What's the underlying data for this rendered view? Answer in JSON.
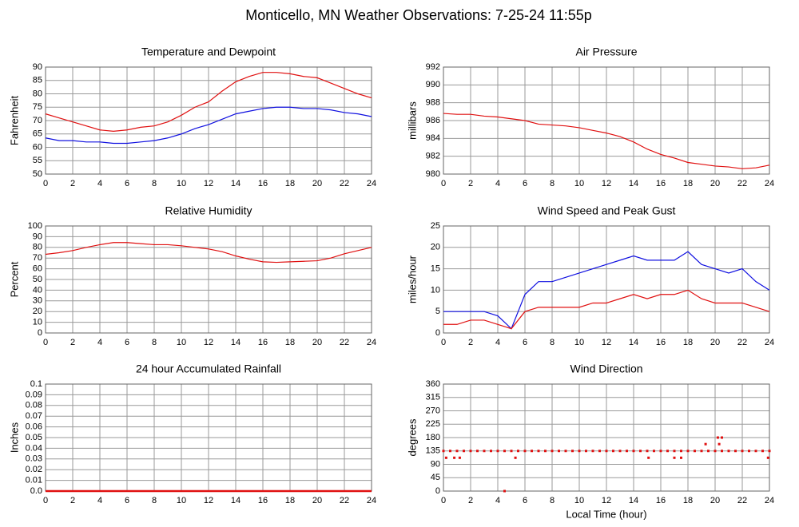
{
  "title": "Monticello, MN Weather Observations: 7-25-24 11:55p",
  "chart_data": [
    {
      "type": "line",
      "title": "Temperature and Dewpoint",
      "y_label": "Fahrenheit",
      "x": [
        0,
        1,
        2,
        3,
        4,
        5,
        6,
        7,
        8,
        9,
        10,
        11,
        12,
        13,
        14,
        15,
        16,
        17,
        18,
        19,
        20,
        21,
        22,
        23,
        24
      ],
      "series": [
        {
          "color": "#e01010",
          "values": [
            72.5,
            71,
            69.5,
            68,
            66.5,
            66,
            66.5,
            67.5,
            68,
            69.5,
            72,
            75,
            77,
            81,
            84.5,
            86.5,
            88,
            88,
            87.5,
            86.5,
            86,
            84,
            82,
            80,
            78.5
          ]
        },
        {
          "color": "#1010e0",
          "values": [
            63.5,
            62.5,
            62.5,
            62,
            62,
            61.5,
            61.5,
            62,
            62.5,
            63.5,
            65,
            67,
            68.5,
            70.5,
            72.5,
            73.5,
            74.5,
            75,
            75,
            74.5,
            74.5,
            74,
            73,
            72.5,
            71.5
          ]
        }
      ],
      "xlim": [
        0,
        24
      ],
      "xticks": [
        0,
        2,
        4,
        6,
        8,
        10,
        12,
        14,
        16,
        18,
        20,
        22,
        24
      ],
      "ylim": [
        50,
        90
      ],
      "yticks": [
        50,
        55,
        60,
        65,
        70,
        75,
        80,
        85,
        90
      ],
      "grid": true
    },
    {
      "type": "line",
      "title": "Air Pressure",
      "y_label": "millibars",
      "x": [
        0,
        1,
        2,
        3,
        4,
        5,
        6,
        7,
        8,
        9,
        10,
        11,
        12,
        13,
        14,
        15,
        16,
        17,
        18,
        19,
        20,
        21,
        22,
        23,
        24
      ],
      "series": [
        {
          "color": "#e01010",
          "values": [
            986.8,
            986.7,
            986.7,
            986.5,
            986.4,
            986.2,
            986,
            985.6,
            985.5,
            985.4,
            985.2,
            984.9,
            984.6,
            984.2,
            983.6,
            982.8,
            982.2,
            981.8,
            981.3,
            981.1,
            980.9,
            980.8,
            980.6,
            980.7,
            981.0
          ]
        }
      ],
      "xlim": [
        0,
        24
      ],
      "xticks": [
        0,
        2,
        4,
        6,
        8,
        10,
        12,
        14,
        16,
        18,
        20,
        22,
        24
      ],
      "ylim": [
        980,
        992
      ],
      "yticks": [
        980,
        982,
        984,
        986,
        988,
        990,
        992
      ],
      "grid": true
    },
    {
      "type": "line",
      "title": "Relative Humidity",
      "y_label": "Percent",
      "x": [
        0,
        1,
        2,
        3,
        4,
        5,
        6,
        7,
        8,
        9,
        10,
        11,
        12,
        13,
        14,
        15,
        16,
        17,
        18,
        19,
        20,
        21,
        22,
        23,
        24
      ],
      "series": [
        {
          "color": "#e01010",
          "values": [
            73.5,
            75,
            77,
            80,
            82.5,
            84.5,
            84.5,
            83.5,
            82.5,
            82.5,
            81.5,
            80,
            78.5,
            76,
            72,
            69,
            66.5,
            66,
            66.5,
            67,
            67.5,
            70,
            74,
            77,
            80
          ]
        }
      ],
      "xlim": [
        0,
        24
      ],
      "xticks": [
        0,
        2,
        4,
        6,
        8,
        10,
        12,
        14,
        16,
        18,
        20,
        22,
        24
      ],
      "ylim": [
        0,
        100
      ],
      "yticks": [
        0,
        10,
        20,
        30,
        40,
        50,
        60,
        70,
        80,
        90,
        100
      ],
      "grid": true
    },
    {
      "type": "line",
      "title": "Wind Speed and Peak Gust",
      "y_label": "miles/hour",
      "x": [
        0,
        1,
        2,
        3,
        4,
        5,
        6,
        7,
        8,
        9,
        10,
        11,
        12,
        13,
        14,
        15,
        16,
        17,
        18,
        19,
        20,
        21,
        22,
        23,
        24
      ],
      "series": [
        {
          "color": "#1010e0",
          "values": [
            5,
            5,
            5,
            5,
            4,
            1,
            9,
            12,
            12,
            13,
            14,
            15,
            16,
            17,
            18,
            17,
            17,
            17,
            19,
            16,
            15,
            14,
            15,
            12,
            10
          ]
        },
        {
          "color": "#e01010",
          "values": [
            2,
            2,
            3,
            3,
            2,
            1,
            5,
            6,
            6,
            6,
            6,
            7,
            7,
            8,
            9,
            8,
            9,
            9,
            10,
            8,
            7,
            7,
            7,
            6,
            5
          ]
        }
      ],
      "xlim": [
        0,
        24
      ],
      "xticks": [
        0,
        2,
        4,
        6,
        8,
        10,
        12,
        14,
        16,
        18,
        20,
        22,
        24
      ],
      "ylim": [
        0,
        25
      ],
      "yticks": [
        0,
        5,
        10,
        15,
        20,
        25
      ],
      "grid": true
    },
    {
      "type": "line",
      "title": "24 hour Accumulated Rainfall",
      "y_label": "Inches",
      "x": [
        0,
        24
      ],
      "series": [
        {
          "color": "#e01010",
          "values": [
            0,
            0
          ]
        }
      ],
      "xlim": [
        0,
        24
      ],
      "xticks": [
        0,
        2,
        4,
        6,
        8,
        10,
        12,
        14,
        16,
        18,
        20,
        22,
        24
      ],
      "ylim": [
        0,
        0.1
      ],
      "yticks": [
        {
          "value": 0,
          "label": "0.0"
        },
        0.01,
        0.02,
        0.03,
        0.04,
        0.05,
        0.06,
        0.07,
        0.08,
        0.09,
        0.1
      ],
      "grid": true
    },
    {
      "type": "scatter",
      "title": "Wind Direction",
      "y_label": "degrees",
      "x_label": "Local Time (hour)",
      "x": [
        0,
        0.5,
        1,
        1.5,
        2,
        2.5,
        3,
        3.5,
        4,
        4.5,
        5,
        5.5,
        6,
        6.5,
        7,
        7.5,
        8,
        8.5,
        9,
        9.5,
        10,
        10.5,
        11,
        11.5,
        12,
        12.5,
        13,
        13.5,
        14,
        14.5,
        15,
        15.5,
        16,
        16.5,
        17,
        17.5,
        18,
        18.5,
        19,
        19.5,
        20,
        20.5,
        21,
        21.5,
        22,
        22.5,
        23,
        23.5,
        24,
        0.2,
        0.8,
        1.2,
        4.5,
        5.3,
        15.1,
        17,
        17.5,
        19.3,
        20.2,
        20.3,
        20.5,
        23.9
      ],
      "series": [
        {
          "color": "#e01010",
          "values": [
            135,
            135,
            135,
            135,
            135,
            135,
            135,
            135,
            135,
            135,
            135,
            135,
            135,
            135,
            135,
            135,
            135,
            135,
            135,
            135,
            135,
            135,
            135,
            135,
            135,
            135,
            135,
            135,
            135,
            135,
            135,
            135,
            135,
            135,
            135,
            135,
            135,
            135,
            135,
            135,
            135,
            135,
            135,
            135,
            135,
            135,
            135,
            135,
            135,
            112,
            112,
            112,
            0,
            112,
            112,
            112,
            112,
            158,
            180,
            158,
            180,
            112
          ]
        }
      ],
      "xlim": [
        0,
        24
      ],
      "xticks": [
        0,
        2,
        4,
        6,
        8,
        10,
        12,
        14,
        16,
        18,
        20,
        22,
        24
      ],
      "ylim": [
        0,
        360
      ],
      "yticks": [
        0,
        45,
        90,
        135,
        180,
        225,
        270,
        315,
        360
      ],
      "grid": true
    }
  ]
}
